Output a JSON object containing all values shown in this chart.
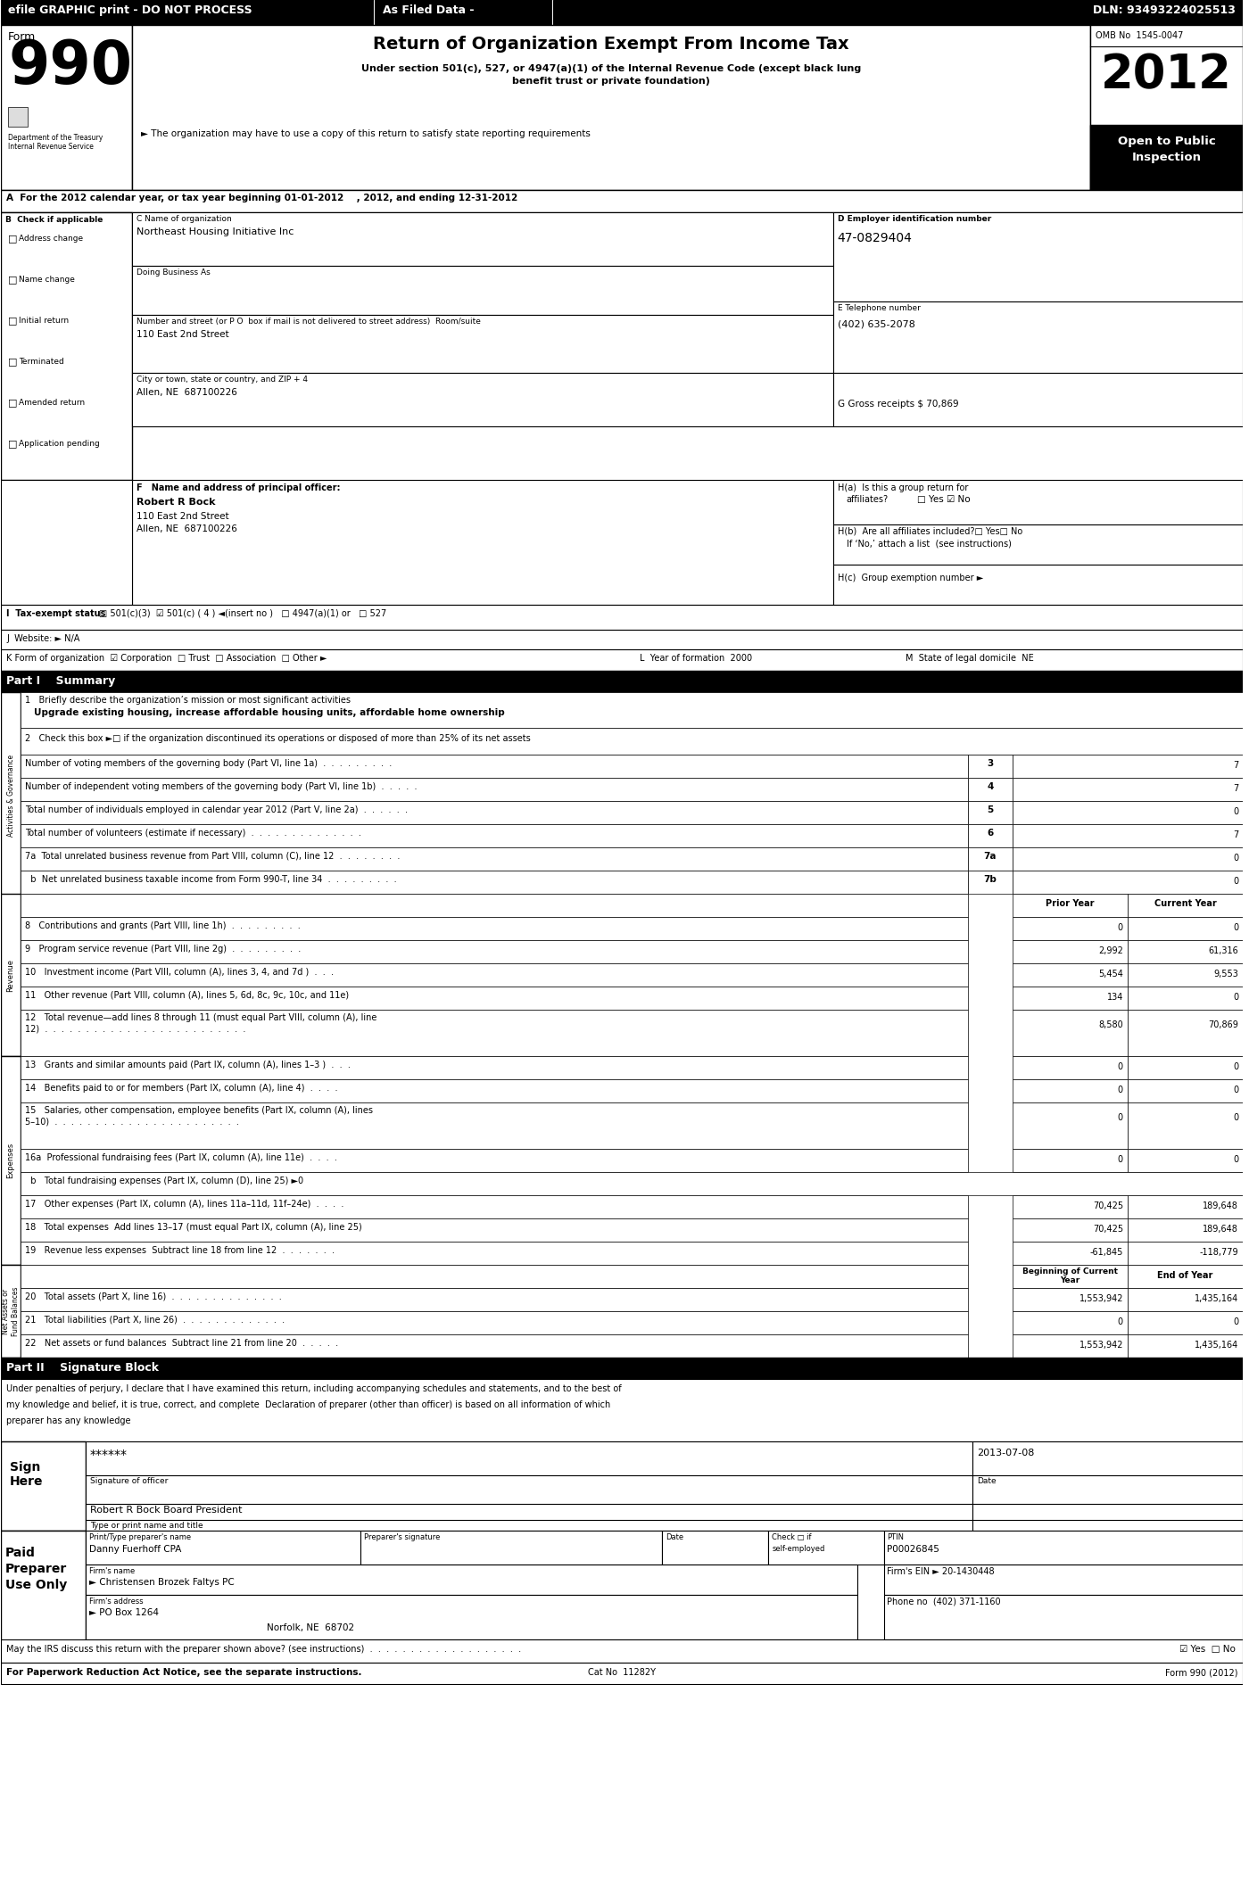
{
  "title": "Return of Organization Exempt From Income Tax",
  "subtitle_line1": "Under section 501(c), 527, or 4947(a)(1) of the Internal Revenue Code (except black lung",
  "subtitle_line2": "benefit trust or private foundation)",
  "org_statement": "► The organization may have to use a copy of this return to satisfy state reporting requirements",
  "year": "2012",
  "omb": "OMB No  1545-0047",
  "dln": "DLN: 93493224025513",
  "efile_header": "efile GRAPHIC print - DO NOT PROCESS",
  "filed_data": "As Filed Data -",
  "open_to_public": "Open to Public\nInspection",
  "section_a": "A  For the 2012 calendar year, or tax year beginning 01-01-2012    , 2012, and ending 12-31-2012",
  "checkboxes_B": [
    "Address change",
    "Name change",
    "Initial return",
    "Terminated",
    "Amended return",
    "Application pending"
  ],
  "org_name": "Northeast Housing Initiative Inc",
  "dba_label": "Doing Business As",
  "street_label": "Number and street (or P O  box if mail is not delivered to street address)  Room/suite",
  "street": "110 East 2nd Street",
  "city_label": "City or town, state or country, and ZIP + 4",
  "city": "Allen, NE  687100226",
  "ein": "47-0829404",
  "phone": "(402) 635-2078",
  "gross_receipts": "G Gross receipts $ 70,869",
  "principal_name": "Robert R Bock",
  "principal_addr1": "110 East 2nd Street",
  "principal_addr2": "Allen, NE  687100226",
  "I_checkboxes": "□ 501(c)(3)  ☑ 501(c) ( 4 ) ◄(insert no )   □ 4947(a)(1) or   □ 527",
  "part1_title": "Part I    Summary",
  "line1_label": "1   Briefly describe the organization’s mission or most significant activities",
  "line1_answer": "Upgrade existing housing, increase affordable housing units, affordable home ownership",
  "line2_label": "2   Check this box ►□ if the organization discontinued its operations or disposed of more than 25% of its net assets",
  "lines_3_7": [
    [
      "3",
      "Number of voting members of the governing body (Part VI, line 1a)  .  .  .  .  .  .  .  .  .",
      "3",
      "7"
    ],
    [
      "4",
      "Number of independent voting members of the governing body (Part VI, line 1b)  .  .  .  .  .",
      "4",
      "7"
    ],
    [
      "5",
      "Total number of individuals employed in calendar year 2012 (Part V, line 2a)  .  .  .  .  .  .",
      "5",
      "0"
    ],
    [
      "6",
      "Total number of volunteers (estimate if necessary)  .  .  .  .  .  .  .  .  .  .  .  .  .  .",
      "6",
      "7"
    ],
    [
      "7a",
      "7a  Total unrelated business revenue from Part VIII, column (C), line 12  .  .  .  .  .  .  .  .",
      "7a",
      "0"
    ],
    [
      "7b",
      "  b  Net unrelated business taxable income from Form 990-T, line 34  .  .  .  .  .  .  .  .  .",
      "7b",
      "0"
    ]
  ],
  "rev_lines": [
    [
      "8",
      "Contributions and grants (Part VIII, line 1h)  .  .  .  .  .  .  .  .  .",
      "0",
      "0"
    ],
    [
      "9",
      "Program service revenue (Part VIII, line 2g)  .  .  .  .  .  .  .  .  .",
      "2,992",
      "61,316"
    ],
    [
      "10",
      "Investment income (Part VIII, column (A), lines 3, 4, and 7d )  .  .  .",
      "5,454",
      "9,553"
    ],
    [
      "11",
      "Other revenue (Part VIII, column (A), lines 5, 6d, 8c, 9c, 10c, and 11e)",
      "134",
      "0"
    ]
  ],
  "line12_label1": "12   Total revenue—add lines 8 through 11 (must equal Part VIII, column (A), line",
  "line12_label2": "12)  .  .  .  .  .  .  .  .  .  .  .  .  .  .  .  .  .  .  .  .  .  .  .  .  .",
  "line12_prior": "8,580",
  "line12_current": "70,869",
  "exp_lines": [
    [
      "13",
      "Grants and similar amounts paid (Part IX, column (A), lines 1–3 )  .  .  .",
      "0",
      "0"
    ],
    [
      "14",
      "Benefits paid to or for members (Part IX, column (A), line 4)  .  .  .  .",
      "0",
      "0"
    ]
  ],
  "line15_label1": "15   Salaries, other compensation, employee benefits (Part IX, column (A), lines",
  "line15_label2": "5–10)  .  .  .  .  .  .  .  .  .  .  .  .  .  .  .  .  .  .  .  .  .  .  .",
  "line15_prior": "0",
  "line15_current": "0",
  "line16a_label": "16a  Professional fundraising fees (Part IX, column (A), line 11e)  .  .  .  .",
  "line16a_prior": "0",
  "line16a_current": "0",
  "line16b_label": "  b   Total fundraising expenses (Part IX, column (D), line 25) ►0",
  "line17_label": "17   Other expenses (Part IX, column (A), lines 11a–11d, 11f–24e)  .  .  .  .",
  "line17_prior": "70,425",
  "line17_current": "189,648",
  "line18_label": "18   Total expenses  Add lines 13–17 (must equal Part IX, column (A), line 25)",
  "line18_prior": "70,425",
  "line18_current": "189,648",
  "line19_label": "19   Revenue less expenses  Subtract line 18 from line 12  .  .  .  .  .  .  .",
  "line19_prior": "-61,845",
  "line19_current": "-118,779",
  "net_lines": [
    [
      "20",
      "Total assets (Part X, line 16)  .  .  .  .  .  .  .  .  .  .  .  .  .  .",
      "1,553,942",
      "1,435,164"
    ],
    [
      "21",
      "Total liabilities (Part X, line 26)  .  .  .  .  .  .  .  .  .  .  .  .  .",
      "0",
      "0"
    ],
    [
      "22",
      "Net assets or fund balances  Subtract line 21 from line 20  .  .  .  .  .",
      "1,553,942",
      "1,435,164"
    ]
  ],
  "part2_title": "Part II    Signature Block",
  "sign_text_lines": [
    "Under penalties of perjury, I declare that I have examined this return, including accompanying schedules and statements, and to the best of",
    "my knowledge and belief, it is true, correct, and complete  Declaration of preparer (other than officer) is based on all information of which",
    "preparer has any knowledge"
  ],
  "sig_stars": "******",
  "sig_date": "2013-07-08",
  "sig_officer": "Robert R Bock Board President",
  "preparer_name": "Danny Fuerhoff CPA",
  "ptin": "P00026845",
  "firm_name": "► Christensen Brozek Faltys PC",
  "firm_ein": "20-1430448",
  "firm_address": "► PO Box 1264",
  "firm_city": "Norfolk, NE  68702",
  "firm_phone": "(402) 371-1160",
  "irs_discuss": "May the IRS discuss this return with the preparer shown above? (see instructions)  .  .  .  .  .  .  .  .  .  .  .  .  .  .  .  .  .  .  .",
  "footer_left": "For Paperwork Reduction Act Notice, see the separate instructions.",
  "footer_cat": "Cat No  11282Y",
  "footer_right": "Form 990 (2012)"
}
